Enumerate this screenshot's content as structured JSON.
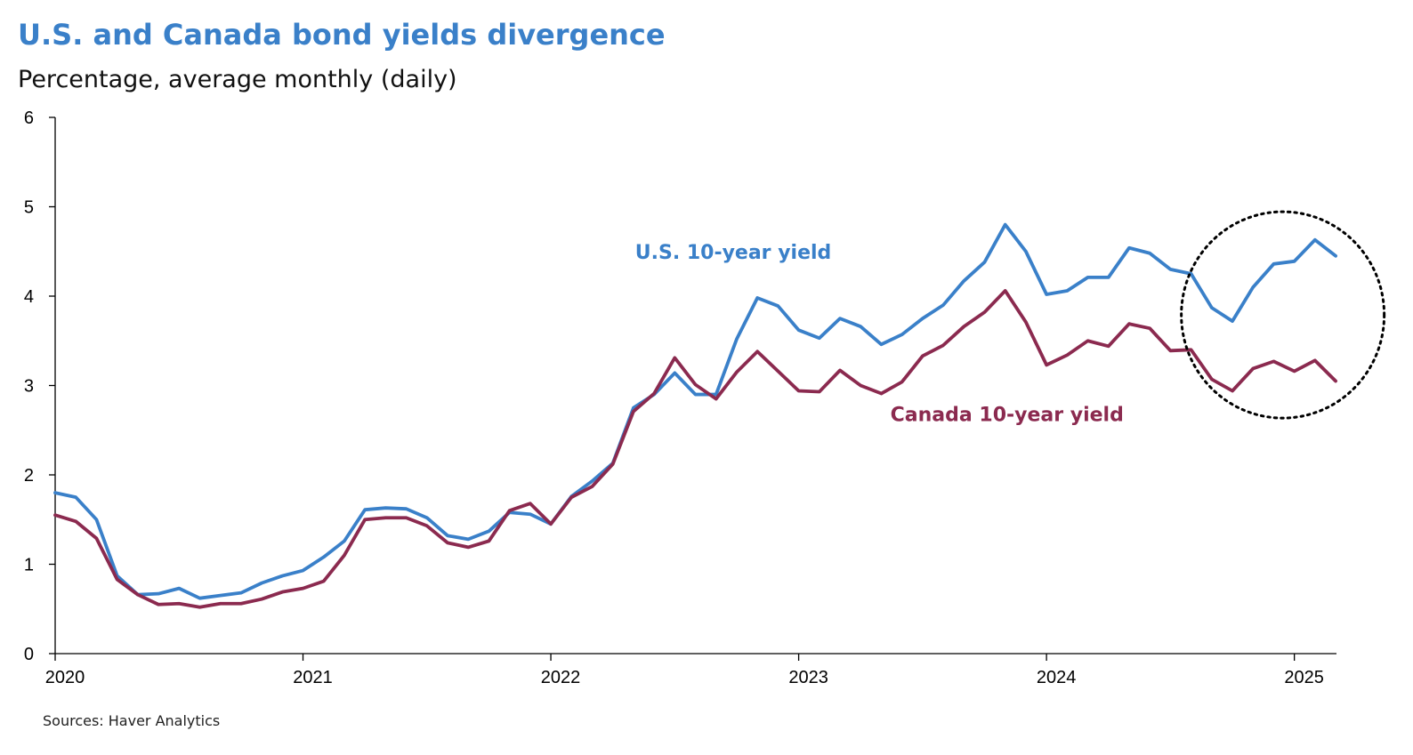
{
  "header": {
    "title": "U.S. and Canada bond yields divergence",
    "subtitle": "Percentage, average monthly (daily)"
  },
  "footer": {
    "source": "Sources: Haver Analytics"
  },
  "chart_data": {
    "type": "line",
    "title": "U.S. and Canada bond yields divergence",
    "subtitle": "Percentage, average monthly (daily)",
    "xlabel": "",
    "ylabel": "",
    "ylim": [
      0,
      6
    ],
    "yticks": [
      0,
      1,
      2,
      3,
      4,
      5,
      6
    ],
    "xticks": [
      {
        "value": 2020,
        "label": "2020"
      },
      {
        "value": 2021,
        "label": "2021"
      },
      {
        "value": 2022,
        "label": "2022"
      },
      {
        "value": 2023,
        "label": "2023"
      },
      {
        "value": 2024,
        "label": "2024"
      },
      {
        "value": 2025,
        "label": "2025"
      }
    ],
    "xlim": [
      2020,
      2025.17
    ],
    "grid": false,
    "legend": "inline",
    "x_start": 2020.0,
    "x_step_months": 1,
    "series": [
      {
        "name": "U.S. 10-year yield",
        "label": "U.S. 10-year yield",
        "color": "#3a80c9",
        "values": [
          1.8,
          1.75,
          1.5,
          0.87,
          0.66,
          0.67,
          0.73,
          0.62,
          0.65,
          0.68,
          0.79,
          0.87,
          0.93,
          1.08,
          1.26,
          1.61,
          1.63,
          1.62,
          1.52,
          1.32,
          1.28,
          1.37,
          1.58,
          1.56,
          1.45,
          1.76,
          1.93,
          2.13,
          2.75,
          2.9,
          3.14,
          2.9,
          2.9,
          3.52,
          3.98,
          3.89,
          3.62,
          3.53,
          3.75,
          3.66,
          3.46,
          3.57,
          3.75,
          3.9,
          4.17,
          4.38,
          4.8,
          4.5,
          4.02,
          4.06,
          4.21,
          4.21,
          4.54,
          4.48,
          4.3,
          4.25,
          3.87,
          3.72,
          4.1,
          4.36,
          4.39,
          4.63,
          4.45
        ]
      },
      {
        "name": "Canada 10-year yield",
        "label": "Canada 10-year yield",
        "color": "#8b2a4f",
        "values": [
          1.55,
          1.48,
          1.29,
          0.83,
          0.66,
          0.55,
          0.56,
          0.52,
          0.56,
          0.56,
          0.61,
          0.69,
          0.73,
          0.81,
          1.1,
          1.5,
          1.52,
          1.52,
          1.43,
          1.24,
          1.19,
          1.26,
          1.6,
          1.68,
          1.45,
          1.75,
          1.87,
          2.12,
          2.71,
          2.91,
          3.31,
          3.01,
          2.85,
          3.15,
          3.38,
          3.16,
          2.94,
          2.93,
          3.17,
          3.0,
          2.91,
          3.04,
          3.33,
          3.45,
          3.66,
          3.82,
          4.06,
          3.71,
          3.23,
          3.34,
          3.5,
          3.44,
          3.69,
          3.64,
          3.39,
          3.4,
          3.07,
          2.94,
          3.19,
          3.27,
          3.16,
          3.28,
          3.05
        ]
      }
    ],
    "annotations": [
      {
        "type": "dotted-circle",
        "center_x": 2025.0,
        "center_y": 3.8,
        "note": "divergence highlight"
      }
    ]
  }
}
